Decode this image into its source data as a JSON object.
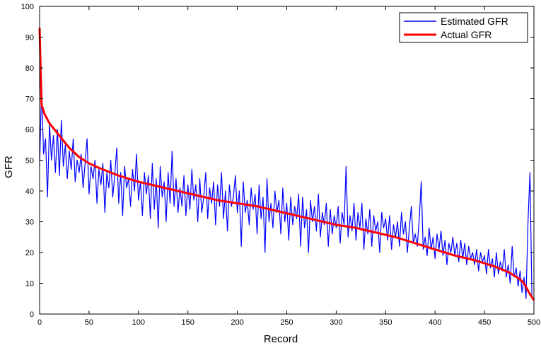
{
  "chart_data": {
    "type": "line",
    "title": "",
    "xlabel": "Record",
    "ylabel": "GFR",
    "xlim": [
      0,
      500
    ],
    "ylim": [
      0,
      100
    ],
    "x_ticks": [
      0,
      50,
      100,
      150,
      200,
      250,
      300,
      350,
      400,
      450,
      500
    ],
    "y_ticks": [
      0,
      10,
      20,
      30,
      40,
      50,
      60,
      70,
      80,
      90,
      100
    ],
    "grid": false,
    "legend_position": "top-right",
    "x_record_count": 500,
    "series": [
      {
        "name": "Estimated GFR",
        "color": "#0000ff",
        "points": [
          [
            0,
            48
          ],
          [
            2,
            74
          ],
          [
            4,
            52
          ],
          [
            6,
            57
          ],
          [
            8,
            38
          ],
          [
            10,
            62
          ],
          [
            12,
            50
          ],
          [
            14,
            58
          ],
          [
            16,
            46
          ],
          [
            18,
            60
          ],
          [
            20,
            45
          ],
          [
            22,
            63
          ],
          [
            24,
            48
          ],
          [
            26,
            55
          ],
          [
            28,
            44
          ],
          [
            30,
            53
          ],
          [
            32,
            47
          ],
          [
            34,
            57
          ],
          [
            36,
            43
          ],
          [
            38,
            50
          ],
          [
            40,
            46
          ],
          [
            42,
            52
          ],
          [
            44,
            41
          ],
          [
            46,
            49
          ],
          [
            48,
            57
          ],
          [
            50,
            39
          ],
          [
            52,
            48
          ],
          [
            54,
            44
          ],
          [
            56,
            50
          ],
          [
            58,
            36
          ],
          [
            60,
            47
          ],
          [
            62,
            42
          ],
          [
            64,
            49
          ],
          [
            66,
            33
          ],
          [
            68,
            46
          ],
          [
            70,
            41
          ],
          [
            72,
            50
          ],
          [
            74,
            38
          ],
          [
            76,
            45
          ],
          [
            78,
            54
          ],
          [
            80,
            36
          ],
          [
            82,
            46
          ],
          [
            84,
            32
          ],
          [
            86,
            48
          ],
          [
            88,
            41
          ],
          [
            90,
            44
          ],
          [
            92,
            35
          ],
          [
            94,
            47
          ],
          [
            96,
            40
          ],
          [
            98,
            52
          ],
          [
            100,
            37
          ],
          [
            102,
            43
          ],
          [
            104,
            32
          ],
          [
            106,
            46
          ],
          [
            108,
            39
          ],
          [
            110,
            45
          ],
          [
            112,
            31
          ],
          [
            114,
            49
          ],
          [
            116,
            34
          ],
          [
            118,
            44
          ],
          [
            120,
            28
          ],
          [
            122,
            48
          ],
          [
            124,
            38
          ],
          [
            126,
            43
          ],
          [
            128,
            30
          ],
          [
            130,
            46
          ],
          [
            132,
            36
          ],
          [
            134,
            53
          ],
          [
            136,
            35
          ],
          [
            138,
            44
          ],
          [
            140,
            33
          ],
          [
            142,
            41
          ],
          [
            144,
            35
          ],
          [
            146,
            45
          ],
          [
            148,
            32
          ],
          [
            150,
            42
          ],
          [
            152,
            34
          ],
          [
            154,
            47
          ],
          [
            156,
            37
          ],
          [
            158,
            42
          ],
          [
            160,
            30
          ],
          [
            162,
            44
          ],
          [
            164,
            33
          ],
          [
            166,
            38
          ],
          [
            168,
            46
          ],
          [
            170,
            31
          ],
          [
            172,
            41
          ],
          [
            174,
            36
          ],
          [
            176,
            43
          ],
          [
            178,
            29
          ],
          [
            180,
            42
          ],
          [
            182,
            35
          ],
          [
            184,
            46
          ],
          [
            186,
            31
          ],
          [
            188,
            40
          ],
          [
            190,
            27
          ],
          [
            192,
            42
          ],
          [
            194,
            35
          ],
          [
            196,
            38
          ],
          [
            198,
            45
          ],
          [
            200,
            33
          ],
          [
            202,
            40
          ],
          [
            204,
            22
          ],
          [
            206,
            43
          ],
          [
            208,
            33
          ],
          [
            210,
            37
          ],
          [
            212,
            29
          ],
          [
            214,
            41
          ],
          [
            216,
            34
          ],
          [
            218,
            39
          ],
          [
            220,
            26
          ],
          [
            222,
            42
          ],
          [
            224,
            31
          ],
          [
            226,
            38
          ],
          [
            228,
            20
          ],
          [
            230,
            44
          ],
          [
            232,
            30
          ],
          [
            234,
            36
          ],
          [
            236,
            28
          ],
          [
            238,
            40
          ],
          [
            240,
            33
          ],
          [
            242,
            37
          ],
          [
            244,
            26
          ],
          [
            246,
            41
          ],
          [
            248,
            30
          ],
          [
            250,
            36
          ],
          [
            252,
            24
          ],
          [
            254,
            38
          ],
          [
            256,
            29
          ],
          [
            258,
            35
          ],
          [
            260,
            31
          ],
          [
            262,
            39
          ],
          [
            264,
            22
          ],
          [
            266,
            38
          ],
          [
            268,
            28
          ],
          [
            270,
            34
          ],
          [
            272,
            20
          ],
          [
            274,
            37
          ],
          [
            276,
            30
          ],
          [
            278,
            35
          ],
          [
            280,
            27
          ],
          [
            282,
            39
          ],
          [
            284,
            25
          ],
          [
            286,
            33
          ],
          [
            288,
            29
          ],
          [
            290,
            36
          ],
          [
            292,
            22
          ],
          [
            294,
            34
          ],
          [
            296,
            26
          ],
          [
            298,
            32
          ],
          [
            300,
            28
          ],
          [
            302,
            35
          ],
          [
            304,
            23
          ],
          [
            306,
            33
          ],
          [
            308,
            29
          ],
          [
            310,
            48
          ],
          [
            312,
            25
          ],
          [
            314,
            32
          ],
          [
            316,
            27
          ],
          [
            318,
            36
          ],
          [
            320,
            24
          ],
          [
            322,
            33
          ],
          [
            324,
            28
          ],
          [
            326,
            36
          ],
          [
            328,
            21
          ],
          [
            330,
            31
          ],
          [
            332,
            26
          ],
          [
            334,
            34
          ],
          [
            336,
            22
          ],
          [
            338,
            32
          ],
          [
            340,
            27
          ],
          [
            342,
            30
          ],
          [
            344,
            20
          ],
          [
            346,
            33
          ],
          [
            348,
            28
          ],
          [
            350,
            31
          ],
          [
            352,
            24
          ],
          [
            354,
            32
          ],
          [
            356,
            21
          ],
          [
            358,
            29
          ],
          [
            360,
            25
          ],
          [
            362,
            30
          ],
          [
            364,
            22
          ],
          [
            366,
            33
          ],
          [
            368,
            26
          ],
          [
            370,
            30
          ],
          [
            372,
            20
          ],
          [
            374,
            28
          ],
          [
            376,
            35
          ],
          [
            378,
            23
          ],
          [
            380,
            26
          ],
          [
            382,
            22
          ],
          [
            384,
            31
          ],
          [
            386,
            43
          ],
          [
            388,
            21
          ],
          [
            390,
            25
          ],
          [
            392,
            19
          ],
          [
            394,
            28
          ],
          [
            396,
            21
          ],
          [
            398,
            25
          ],
          [
            400,
            18
          ],
          [
            402,
            26
          ],
          [
            404,
            21
          ],
          [
            406,
            27
          ],
          [
            408,
            19
          ],
          [
            410,
            24
          ],
          [
            412,
            16
          ],
          [
            414,
            23
          ],
          [
            416,
            20
          ],
          [
            418,
            25
          ],
          [
            420,
            19
          ],
          [
            422,
            23
          ],
          [
            424,
            17
          ],
          [
            426,
            24
          ],
          [
            428,
            18
          ],
          [
            430,
            23
          ],
          [
            432,
            16
          ],
          [
            434,
            22
          ],
          [
            436,
            18
          ],
          [
            438,
            20
          ],
          [
            440,
            16
          ],
          [
            442,
            21
          ],
          [
            444,
            14
          ],
          [
            446,
            20
          ],
          [
            448,
            17
          ],
          [
            450,
            19
          ],
          [
            452,
            13
          ],
          [
            454,
            21
          ],
          [
            456,
            15
          ],
          [
            458,
            18
          ],
          [
            460,
            12
          ],
          [
            462,
            20
          ],
          [
            464,
            13
          ],
          [
            466,
            17
          ],
          [
            468,
            14
          ],
          [
            470,
            21
          ],
          [
            472,
            12
          ],
          [
            474,
            16
          ],
          [
            476,
            10
          ],
          [
            478,
            22
          ],
          [
            480,
            12
          ],
          [
            482,
            15
          ],
          [
            484,
            9
          ],
          [
            486,
            14
          ],
          [
            488,
            7
          ],
          [
            490,
            12
          ],
          [
            492,
            5
          ],
          [
            494,
            30
          ],
          [
            496,
            46
          ],
          [
            498,
            5
          ]
        ]
      },
      {
        "name": "Actual GFR",
        "color": "#ff0000",
        "points": [
          [
            0,
            93
          ],
          [
            1,
            80
          ],
          [
            2,
            68
          ],
          [
            5,
            65
          ],
          [
            10,
            62
          ],
          [
            20,
            58
          ],
          [
            30,
            54
          ],
          [
            40,
            51
          ],
          [
            50,
            49
          ],
          [
            60,
            47.5
          ],
          [
            80,
            45
          ],
          [
            100,
            43
          ],
          [
            120,
            41.5
          ],
          [
            140,
            40
          ],
          [
            160,
            38.5
          ],
          [
            180,
            37
          ],
          [
            200,
            36
          ],
          [
            220,
            35
          ],
          [
            240,
            33.5
          ],
          [
            260,
            32
          ],
          [
            280,
            30.5
          ],
          [
            300,
            29
          ],
          [
            320,
            28
          ],
          [
            340,
            26.5
          ],
          [
            360,
            25
          ],
          [
            380,
            23
          ],
          [
            400,
            21
          ],
          [
            420,
            19
          ],
          [
            440,
            17.5
          ],
          [
            460,
            15.5
          ],
          [
            475,
            13.5
          ],
          [
            485,
            11.5
          ],
          [
            490,
            10
          ],
          [
            495,
            7
          ],
          [
            500,
            4.5
          ]
        ]
      }
    ]
  }
}
